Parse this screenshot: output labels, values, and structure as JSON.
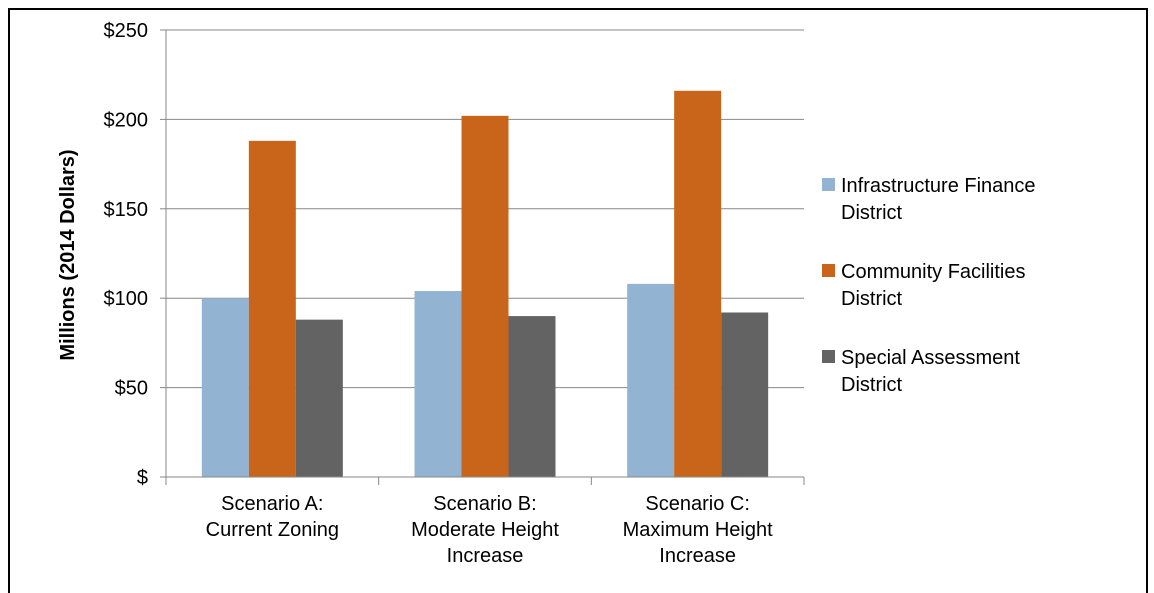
{
  "chart_data": {
    "type": "bar",
    "title": "",
    "xlabel": "",
    "ylabel": "Millions (2014 Dollars)",
    "ylim": [
      0,
      250
    ],
    "yticks": [
      0,
      50,
      100,
      150,
      200,
      250
    ],
    "ytick_labels": [
      "$",
      "$50",
      "$100",
      "$150",
      "$200",
      "$250"
    ],
    "categories": [
      [
        "Scenario A:",
        "Current Zoning"
      ],
      [
        "Scenario B:",
        "Moderate Height",
        "Increase"
      ],
      [
        "Scenario C:",
        "Maximum Height",
        "Increase"
      ]
    ],
    "series": [
      {
        "name": "Infrastructure Finance District",
        "legend_lines": [
          "Infrastructure Finance",
          "District"
        ],
        "color": "#93b3d2",
        "values": [
          100,
          104,
          108
        ]
      },
      {
        "name": "Community Facilities District",
        "legend_lines": [
          "Community Facilities",
          "District"
        ],
        "color": "#c8651b",
        "values": [
          188,
          202,
          216
        ]
      },
      {
        "name": "Special Assessment District",
        "legend_lines": [
          "Special Assessment",
          "District"
        ],
        "color": "#636363",
        "values": [
          88,
          90,
          92
        ]
      }
    ],
    "grid": true,
    "legend_position": "right"
  }
}
